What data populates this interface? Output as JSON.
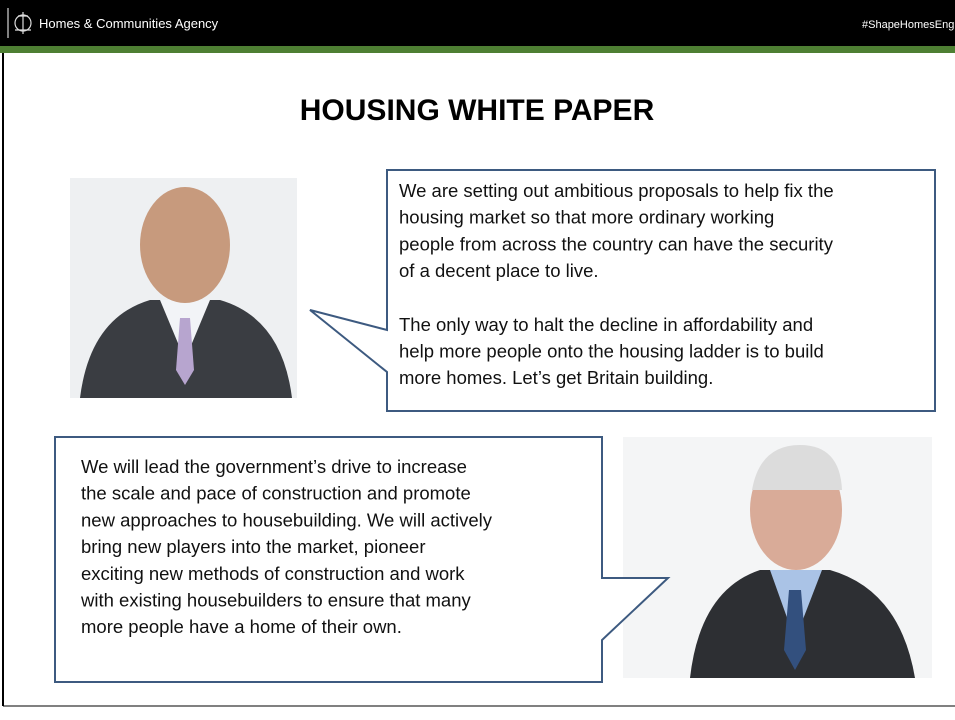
{
  "header": {
    "organization": "Homes & Communities Agency",
    "hashtag": "#ShapeHomesEngland"
  },
  "title": "HOUSING WHITE PAPER",
  "quotes": [
    {
      "paragraphs": [
        [
          "We are setting out ambitious proposals to help fix the",
          "housing market so that more ordinary working",
          "people from across the country can have the security",
          "of a decent place to live."
        ],
        [
          "The only way to halt the decline in affordability and",
          "help more people onto the housing ladder is to build",
          "more homes. Let’s get Britain building."
        ]
      ]
    },
    {
      "paragraphs": [
        [
          "We will lead the government’s drive to increase",
          "the scale and pace of construction and promote",
          "new approaches to housebuilding. We will actively",
          "bring new players into the market, pioneer",
          "exciting new methods of construction and work",
          "with existing housebuilders to ensure that many",
          "more people have a home of their own."
        ]
      ]
    }
  ]
}
